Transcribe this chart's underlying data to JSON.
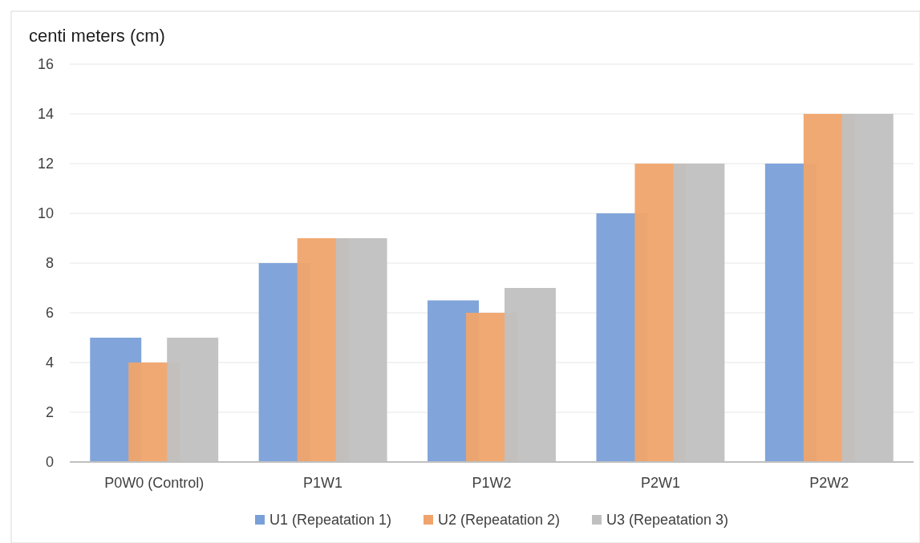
{
  "chart_data": {
    "type": "bar",
    "ylabel": "centi meters (cm)",
    "categories": [
      "P0W0 (Control)",
      "P1W1",
      "P1W2",
      "P2W1",
      "P2W2"
    ],
    "series": [
      {
        "name": "U1 (Repeatation 1)",
        "color": "#7aa0d8",
        "values": [
          5,
          8,
          6.5,
          10,
          12
        ]
      },
      {
        "name": "U2 (Repeatation 2)",
        "color": "#f0a46c",
        "values": [
          4,
          9,
          6,
          12,
          14
        ]
      },
      {
        "name": "U3 (Repeatation 3)",
        "color": "#c0c0c0",
        "values": [
          5,
          9,
          7,
          12,
          14
        ]
      }
    ],
    "ylim": [
      0,
      16
    ],
    "yticks": [
      0,
      2,
      4,
      6,
      8,
      10,
      12,
      14,
      16
    ],
    "grid": "y",
    "legend": "bottom"
  }
}
